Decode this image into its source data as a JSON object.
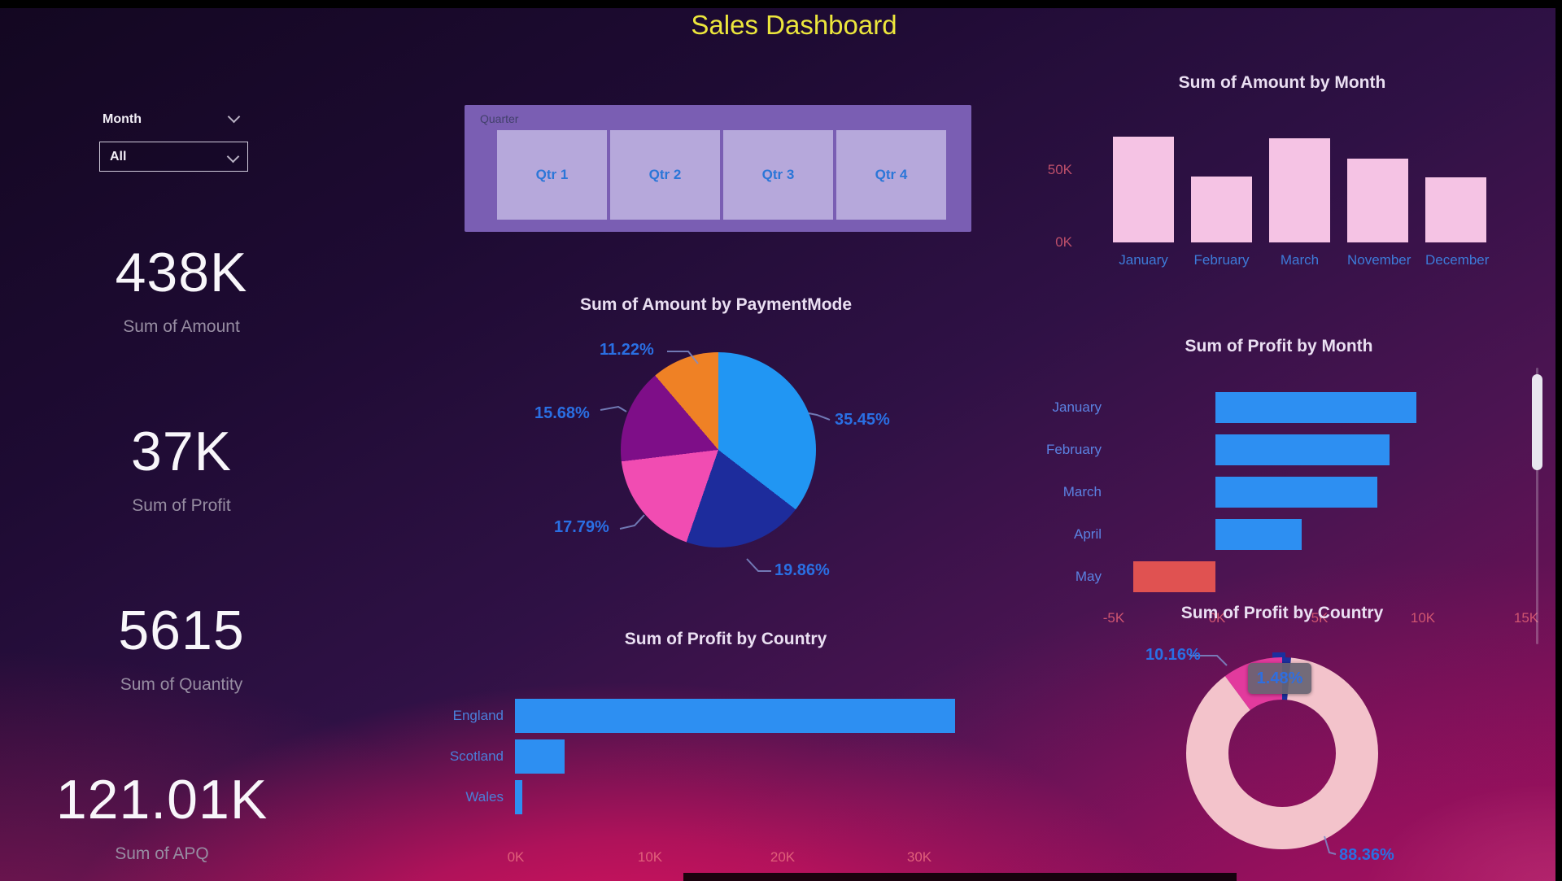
{
  "title": "Sales Dashboard",
  "colors": {
    "title_yellow": "#ece63c",
    "axis_red": "#cf5570",
    "category_blue": "#3d7bd9",
    "percent_blue": "#2a6fe3",
    "bar_pink": "#f5c3e4",
    "bar_blue": "#2d8ff2",
    "bar_negative": "#e05251",
    "slicer_bg": "#7a5eb3",
    "slicer_button_bg": "#b6a8db",
    "slicer_button_text": "#2b76d8"
  },
  "filters": {
    "month": {
      "label": "Month",
      "value": "All"
    },
    "quarter": {
      "label": "Quarter",
      "options": [
        "Qtr 1",
        "Qtr 2",
        "Qtr 3",
        "Qtr 4"
      ]
    }
  },
  "kpis": [
    {
      "value": "438K",
      "label": "Sum of Amount"
    },
    {
      "value": "37K",
      "label": "Sum of Profit"
    },
    {
      "value": "5615",
      "label": "Sum of Quantity"
    },
    {
      "value": "121.01K",
      "label": "Sum of APQ"
    }
  ],
  "chart_data": [
    {
      "id": "amount-by-month",
      "type": "bar",
      "title": "Sum of Amount by Month",
      "categories": [
        "January",
        "February",
        "March",
        "November",
        "December"
      ],
      "values_k": [
        72,
        45,
        71,
        57,
        44
      ],
      "ylim_k": [
        0,
        83
      ],
      "yticks": [
        "50K",
        "0K"
      ],
      "bar_color": "#f5c3e4"
    },
    {
      "id": "amount-by-paymentmode",
      "type": "pie",
      "title": "Sum of Amount by PaymentMode",
      "slices": [
        {
          "label": "35.45%",
          "value": 35.45,
          "color": "#2196f3"
        },
        {
          "label": "19.86%",
          "value": 19.86,
          "color": "#1d2c9c"
        },
        {
          "label": "17.79%",
          "value": 17.79,
          "color": "#f14cb2"
        },
        {
          "label": "15.68%",
          "value": 15.68,
          "color": "#7e0e88"
        },
        {
          "label": "11.22%",
          "value": 11.22,
          "color": "#ef8125"
        }
      ]
    },
    {
      "id": "profit-by-month",
      "type": "bar",
      "orientation": "horizontal",
      "title": "Sum of Profit by Month",
      "categories": [
        "January",
        "February",
        "March",
        "April",
        "May"
      ],
      "values_k": [
        9.8,
        8.5,
        7.9,
        4.2,
        -4
      ],
      "xticks": [
        "-5K",
        "0K",
        "5K",
        "10K",
        "15K"
      ],
      "xlim_k": [
        -5,
        15
      ],
      "positive_color": "#2d8ff2",
      "negative_color": "#e05251"
    },
    {
      "id": "profit-by-country",
      "type": "bar",
      "orientation": "horizontal",
      "title": "Sum of Profit by Country",
      "categories": [
        "England",
        "Scotland",
        "Wales"
      ],
      "values_k": [
        32.8,
        3.7,
        0.55
      ],
      "xticks": [
        "0K",
        "10K",
        "20K",
        "30K"
      ],
      "xlim_k": [
        0,
        33
      ],
      "positive_color": "#2d8ff2"
    },
    {
      "id": "profit-by-country-donut",
      "type": "pie",
      "subtype": "donut",
      "title": "Sum of Profit by Country",
      "slices": [
        {
          "label": "1.48%",
          "value": 1.48,
          "color": "#1b2f9e",
          "selected": true,
          "tooltip": "1.48%"
        },
        {
          "label": "88.36%",
          "value": 88.36,
          "color": "#f3c3cb"
        },
        {
          "label": "10.16%",
          "value": 10.16,
          "color": "#e23a9d"
        }
      ]
    }
  ]
}
